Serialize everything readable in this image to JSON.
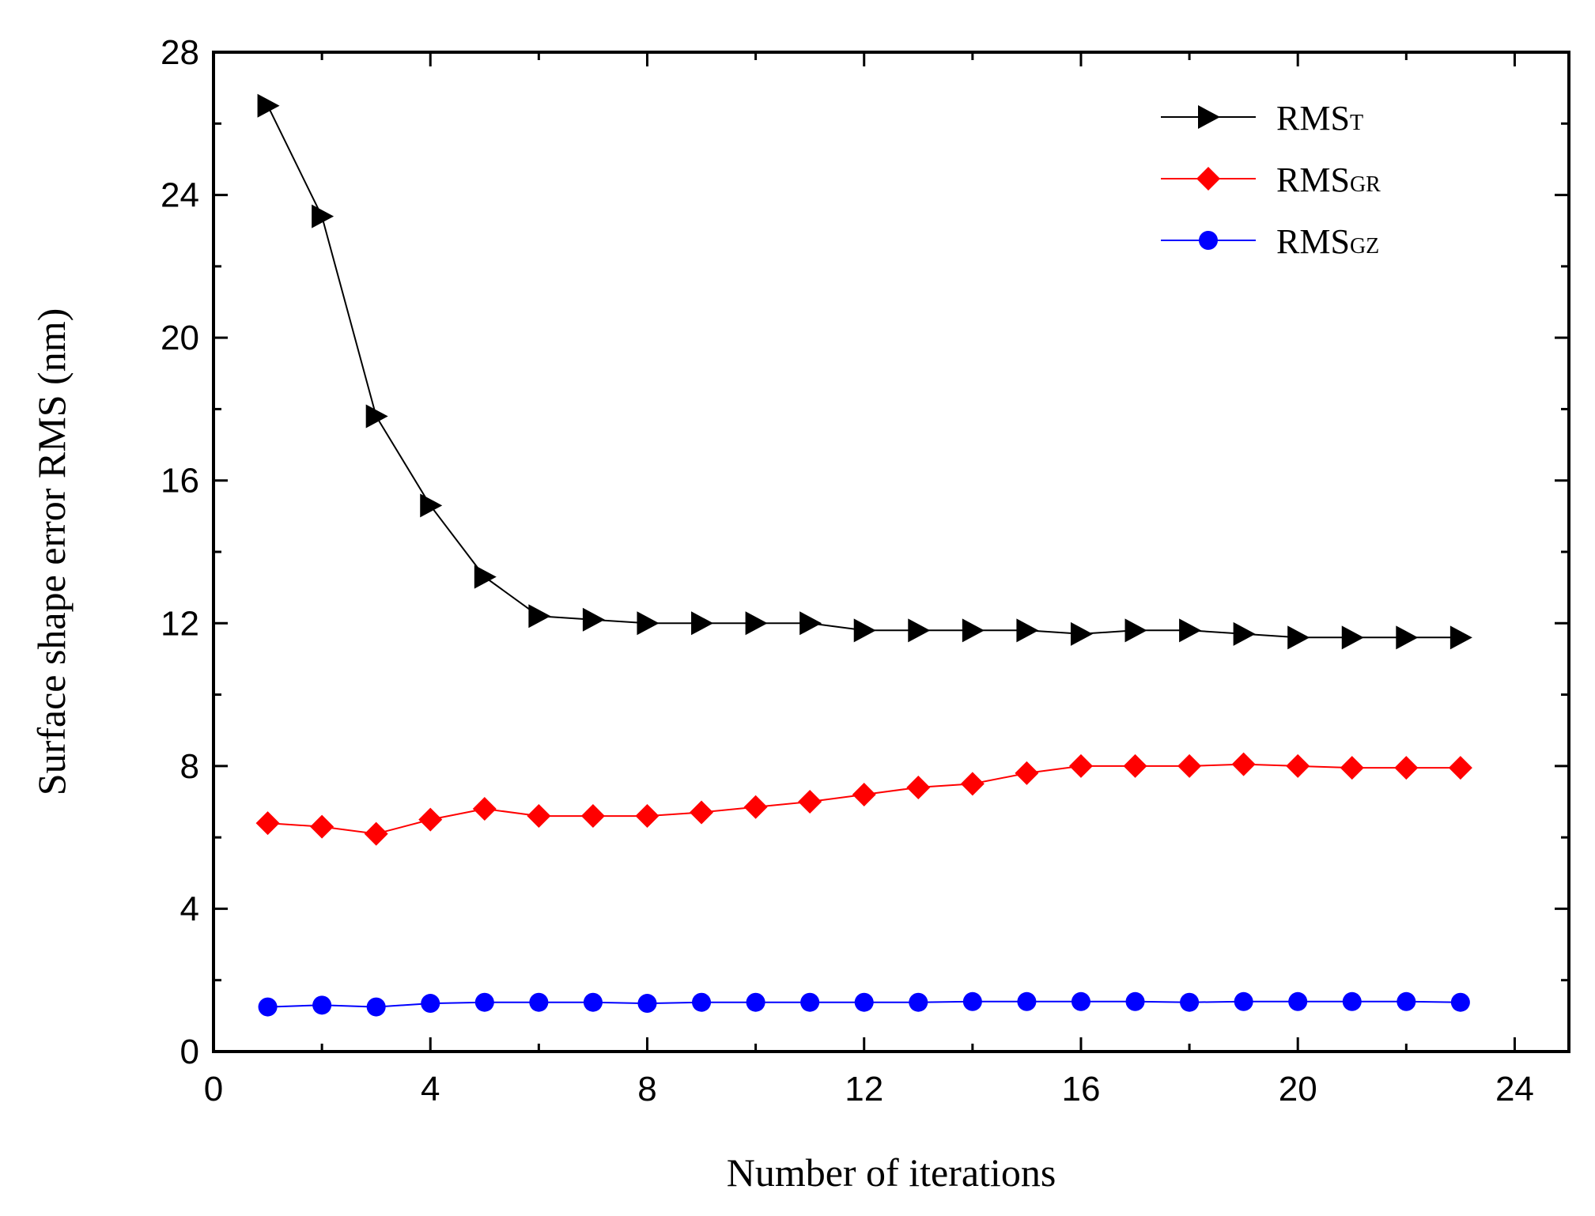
{
  "chart_data": {
    "type": "line",
    "title": "",
    "xlabel": "Number of iterations",
    "ylabel": "Surface shape error RMS (nm)",
    "xlim": [
      0,
      25
    ],
    "ylim": [
      0,
      28
    ],
    "xticks": [
      0,
      4,
      8,
      12,
      16,
      20,
      24
    ],
    "yticks": [
      0,
      4,
      8,
      12,
      16,
      20,
      24,
      28
    ],
    "grid": false,
    "legend_position": "top-right",
    "x": [
      1,
      2,
      3,
      4,
      5,
      6,
      7,
      8,
      9,
      10,
      11,
      12,
      13,
      14,
      15,
      16,
      17,
      18,
      19,
      20,
      21,
      22,
      23
    ],
    "series": [
      {
        "name": "RMS",
        "subscript": "T",
        "color": "#000000",
        "marker": "triangle-right",
        "values": [
          26.5,
          23.4,
          17.8,
          15.3,
          13.3,
          12.2,
          12.1,
          12.0,
          12.0,
          12.0,
          12.0,
          11.8,
          11.8,
          11.8,
          11.8,
          11.7,
          11.8,
          11.8,
          11.7,
          11.6,
          11.6,
          11.6,
          11.6
        ]
      },
      {
        "name": "RMS",
        "subscript": "GR",
        "color": "#ff0000",
        "marker": "diamond",
        "values": [
          6.4,
          6.3,
          6.1,
          6.5,
          6.8,
          6.6,
          6.6,
          6.6,
          6.7,
          6.85,
          7.0,
          7.2,
          7.4,
          7.5,
          7.8,
          8.0,
          8.0,
          8.0,
          8.05,
          8.0,
          7.95,
          7.95,
          7.95
        ]
      },
      {
        "name": "RMS",
        "subscript": "GZ",
        "color": "#0000ff",
        "marker": "circle",
        "values": [
          1.25,
          1.3,
          1.25,
          1.35,
          1.38,
          1.38,
          1.38,
          1.35,
          1.38,
          1.38,
          1.38,
          1.38,
          1.38,
          1.4,
          1.4,
          1.4,
          1.4,
          1.38,
          1.4,
          1.4,
          1.4,
          1.4,
          1.38
        ]
      }
    ]
  }
}
